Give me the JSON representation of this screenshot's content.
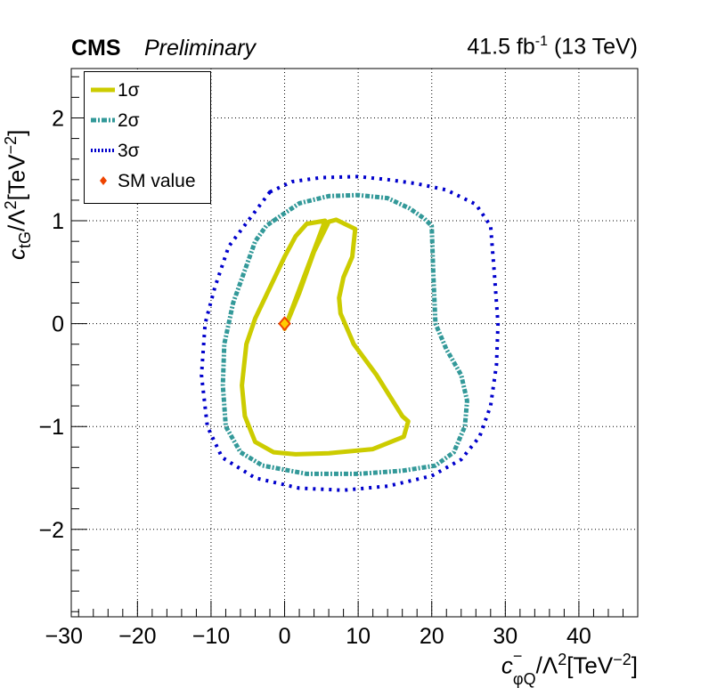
{
  "header": {
    "experiment": "CMS",
    "status": "Preliminary",
    "lumi_text": "41.5 fb",
    "lumi_sup": "-1",
    "lumi_energy": " (13 TeV)"
  },
  "axes": {
    "x_label": {
      "c": "c",
      "sup": "−",
      "sub": "φQ",
      "rest": "/Λ",
      "sup2": "2",
      "unit": "[TeV",
      "unit_sup": "−2",
      "end": "]"
    },
    "y_label": {
      "c": "c",
      "sub": "tG",
      "rest": "/Λ",
      "sup2": "2",
      "unit": "[TeV",
      "unit_sup": "−2",
      "end": "]"
    }
  },
  "legend": {
    "entries": [
      {
        "label": "1σ",
        "style": "solid",
        "color": "#cccc00"
      },
      {
        "label": "2σ",
        "style": "dash-dot",
        "color": "#339999"
      },
      {
        "label": "3σ",
        "style": "dotted",
        "color": "#0000cc"
      },
      {
        "label": "SM value",
        "style": "marker",
        "color": "#ee4400"
      }
    ]
  },
  "chart_data": {
    "type": "contour",
    "xlim": [
      -29,
      48
    ],
    "ylim": [
      -2.85,
      2.48
    ],
    "x_ticks": [
      -30,
      -20,
      -10,
      0,
      10,
      20,
      30,
      40
    ],
    "x_tick_labels": [
      "−30",
      "−20",
      "−10",
      "0",
      "10",
      "20",
      "30",
      "40"
    ],
    "y_ticks": [
      -2,
      -1,
      0,
      1,
      2
    ],
    "y_tick_labels": [
      "−2",
      "−1",
      "0",
      "1",
      "2"
    ],
    "grid": true,
    "legend_position": "top-left",
    "sm_point": {
      "x": 0,
      "y": 0,
      "label": "SM value",
      "color": "#ee4400",
      "fill": "#ffcc00"
    },
    "series": [
      {
        "name": "1σ",
        "color": "#cccc00",
        "style": "solid",
        "points": [
          [
            0,
            -0.05
          ],
          [
            2,
            0.3
          ],
          [
            4,
            0.7
          ],
          [
            6,
            0.99
          ],
          [
            7,
            1.01
          ],
          [
            9.6,
            0.92
          ],
          [
            9.2,
            0.65
          ],
          [
            8,
            0.45
          ],
          [
            7.4,
            0.25
          ],
          [
            7.6,
            0.1
          ],
          [
            9.4,
            -0.2
          ],
          [
            12.5,
            -0.5
          ],
          [
            16,
            -0.9
          ],
          [
            16.8,
            -0.95
          ],
          [
            16.2,
            -1.1
          ],
          [
            12,
            -1.22
          ],
          [
            6,
            -1.26
          ],
          [
            1.5,
            -1.27
          ],
          [
            -1.5,
            -1.25
          ],
          [
            -4,
            -1.15
          ],
          [
            -5.4,
            -0.9
          ],
          [
            -5.8,
            -0.6
          ],
          [
            -5.2,
            -0.2
          ],
          [
            -4,
            0.05
          ],
          [
            -2,
            0.35
          ],
          [
            0,
            0.65
          ],
          [
            1.5,
            0.85
          ],
          [
            3,
            0.97
          ],
          [
            5.5,
            1.0
          ]
        ]
      },
      {
        "name": "2σ",
        "color": "#339999",
        "style": "dash-dot",
        "points": [
          [
            -1.5,
            1.0
          ],
          [
            2,
            1.17
          ],
          [
            6,
            1.24
          ],
          [
            10,
            1.25
          ],
          [
            14,
            1.22
          ],
          [
            17,
            1.12
          ],
          [
            19,
            1.02
          ],
          [
            20,
            0.95
          ],
          [
            20.2,
            0.5
          ],
          [
            20.5,
            0.0
          ],
          [
            22,
            -0.25
          ],
          [
            24,
            -0.5
          ],
          [
            24.8,
            -0.75
          ],
          [
            24.5,
            -1.0
          ],
          [
            23,
            -1.25
          ],
          [
            20.5,
            -1.38
          ],
          [
            16,
            -1.43
          ],
          [
            10,
            -1.46
          ],
          [
            3,
            -1.46
          ],
          [
            -3,
            -1.38
          ],
          [
            -6,
            -1.25
          ],
          [
            -8,
            -1.0
          ],
          [
            -8.4,
            -0.6
          ],
          [
            -8.2,
            -0.2
          ],
          [
            -7,
            0.2
          ],
          [
            -5.5,
            0.5
          ],
          [
            -4,
            0.8
          ],
          [
            -2.5,
            0.95
          ]
        ]
      },
      {
        "name": "3σ",
        "color": "#0000cc",
        "style": "dotted",
        "points": [
          [
            -2,
            1.28
          ],
          [
            1,
            1.38
          ],
          [
            5,
            1.42
          ],
          [
            10,
            1.43
          ],
          [
            14,
            1.4
          ],
          [
            18,
            1.36
          ],
          [
            22,
            1.3
          ],
          [
            26,
            1.16
          ],
          [
            28,
            0.95
          ],
          [
            28.5,
            0.5
          ],
          [
            29,
            0.0
          ],
          [
            28.8,
            -0.4
          ],
          [
            28,
            -0.8
          ],
          [
            26.5,
            -1.1
          ],
          [
            24,
            -1.32
          ],
          [
            20,
            -1.48
          ],
          [
            14,
            -1.58
          ],
          [
            8,
            -1.62
          ],
          [
            2,
            -1.6
          ],
          [
            -4,
            -1.5
          ],
          [
            -8.5,
            -1.3
          ],
          [
            -10.5,
            -1.0
          ],
          [
            -11.3,
            -0.5
          ],
          [
            -10.8,
            0.0
          ],
          [
            -9.5,
            0.35
          ],
          [
            -7.6,
            0.75
          ]
        ]
      }
    ]
  }
}
